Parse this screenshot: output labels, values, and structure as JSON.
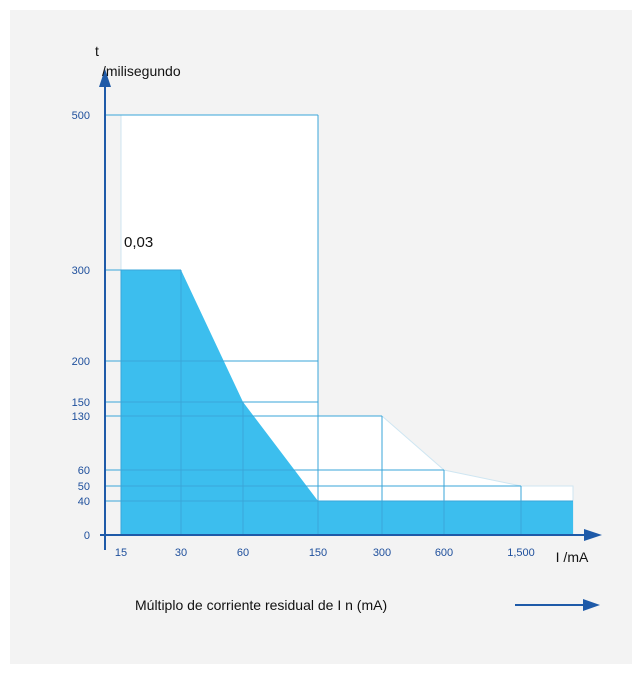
{
  "colors": {
    "axis": "#1e5aa8",
    "grid": "#3aa6d9",
    "fill": "#3cbeee",
    "band_fill": "#ffffff",
    "band_edge": "#cfe6f2",
    "tick_text": "#1e4f9c"
  },
  "footer": {
    "text": "Múltiplo de corriente residual de I n (mA)",
    "arrow_icon": "arrow-right-icon"
  },
  "chart_data": {
    "type": "area",
    "title": "",
    "ylabel_line1": "t",
    "ylabel_line2": "/milisegundo",
    "xlabel": "I /mA",
    "x_scale": "categorical",
    "y_scale": "piecewise (non-linear ticks)",
    "x_ticks": [
      "15",
      "30",
      "60",
      "150",
      "300",
      "600",
      "1,500"
    ],
    "y_ticks": [
      0,
      40,
      50,
      60,
      130,
      150,
      200,
      300,
      500
    ],
    "series": [
      {
        "name": "0,03",
        "points": [
          {
            "x": "15",
            "y": 300
          },
          {
            "x": "30",
            "y": 300
          },
          {
            "x": "60",
            "y": 150
          },
          {
            "x": "150",
            "y": 40
          },
          {
            "x": "1,500",
            "y": 40
          }
        ]
      }
    ],
    "upper_band": [
      {
        "x": "15",
        "y": 500
      },
      {
        "x": "150",
        "y": 500
      },
      {
        "x": "150",
        "y": 130
      },
      {
        "x": "300",
        "y": 130
      },
      {
        "x": "600",
        "y": 60
      },
      {
        "x": "1,500",
        "y": 50
      }
    ],
    "grid": true
  }
}
